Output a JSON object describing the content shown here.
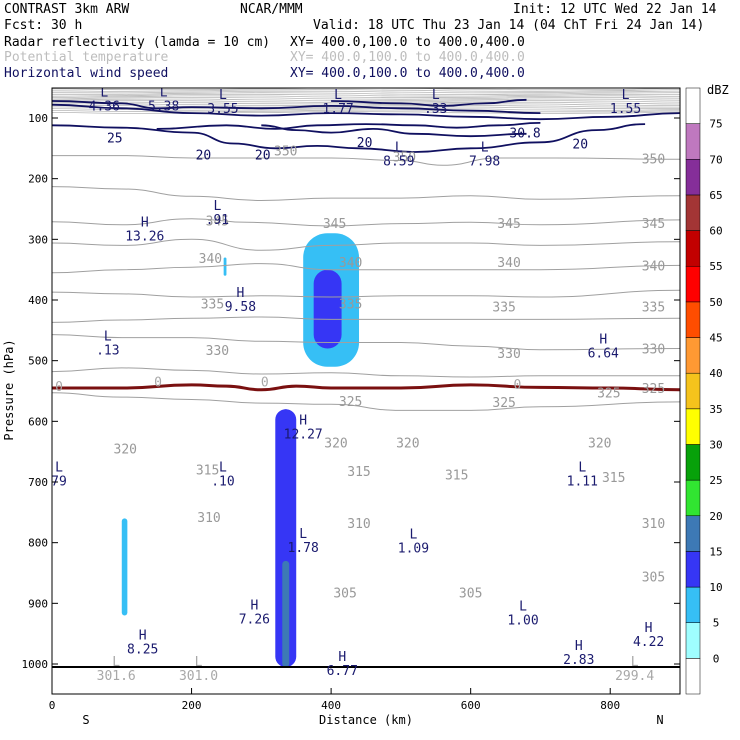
{
  "header": {
    "line1_left": "CONTRAST  3km ARW",
    "line1_mid": "NCAR/MMM",
    "line1_right": "Init: 12 UTC Wed 22 Jan 14",
    "line2_left": "Fcst:     30 h",
    "line2_right": "Valid: 18 UTC Thu 23 Jan 14 (04 ChT Fri 24 Jan 14)",
    "fields": [
      {
        "name": "Radar reflectivity (lamda = 10 cm)",
        "xy": "XY= 400.0,100.0 to 400.0,400.0",
        "color": "#000000"
      },
      {
        "name": "Potential temperature",
        "xy": "XY= 400.0,100.0 to 400.0,400.0",
        "color": "#bdbdbd"
      },
      {
        "name": "Horizontal wind speed",
        "xy": "XY= 400.0,100.0 to 400.0,400.0",
        "color": "#101060"
      }
    ]
  },
  "colors": {
    "isentrope": "#a0a0a0",
    "wind": "#101060",
    "freezing": "#7a1010",
    "ground": "#000000"
  },
  "chart_data": {
    "type": "cross-section",
    "xlabel": "Distance (km)",
    "ylabel": "Pressure (hPa)",
    "xlim": [
      0,
      900
    ],
    "ylim": [
      1050,
      50
    ],
    "x_ticks": [
      0,
      200,
      400,
      600,
      800
    ],
    "y_ticks": [
      100,
      200,
      300,
      400,
      500,
      600,
      700,
      800,
      900,
      1000
    ],
    "x_end_labels": {
      "left": "S",
      "right": "N"
    },
    "colorbar": {
      "unit": "dBZ",
      "levels": [
        0,
        5,
        10,
        15,
        20,
        25,
        30,
        35,
        40,
        45,
        50,
        55,
        60,
        65,
        70,
        75
      ],
      "colors": [
        "#ffffff",
        "#9ffeff",
        "#36bff5",
        "#3636f5",
        "#3d79b5",
        "#31e531",
        "#07a10a",
        "#ffff00",
        "#f5c31c",
        "#ff9933",
        "#ff4d00",
        "#ff0000",
        "#c20000",
        "#a33535",
        "#852e99",
        "#bf78bf",
        "#ffffff"
      ]
    },
    "isentropes": [
      {
        "value": 350,
        "label": "350",
        "points": [
          [
            0,
            162
          ],
          [
            100,
            162
          ],
          [
            200,
            166
          ],
          [
            300,
            166
          ],
          [
            400,
            166
          ],
          [
            500,
            170
          ],
          [
            560,
            178
          ],
          [
            640,
            166
          ],
          [
            720,
            166
          ],
          [
            900,
            168
          ]
        ]
      },
      {
        "value": 345,
        "label": "345",
        "points": [
          [
            0,
            213
          ],
          [
            100,
            217
          ],
          [
            200,
            229
          ],
          [
            300,
            236
          ],
          [
            400,
            232
          ],
          [
            500,
            232
          ],
          [
            600,
            228
          ],
          [
            700,
            234
          ],
          [
            900,
            228
          ]
        ]
      },
      {
        "value": 340,
        "label": "340",
        "points": [
          [
            0,
            271
          ],
          [
            100,
            276
          ],
          [
            200,
            266
          ],
          [
            280,
            272
          ],
          [
            400,
            278
          ],
          [
            500,
            274
          ],
          [
            600,
            272
          ],
          [
            700,
            276
          ],
          [
            900,
            268
          ]
        ]
      },
      {
        "value": 335,
        "label": "335",
        "points": [
          [
            0,
            306
          ],
          [
            100,
            310
          ],
          [
            200,
            300
          ],
          [
            300,
            318
          ],
          [
            400,
            310
          ],
          [
            500,
            306
          ],
          [
            600,
            306
          ],
          [
            700,
            310
          ],
          [
            900,
            304
          ]
        ]
      },
      {
        "value": 330,
        "label": "330",
        "points": [
          [
            0,
            355
          ],
          [
            100,
            350
          ],
          [
            200,
            346
          ],
          [
            300,
            340
          ],
          [
            400,
            350
          ],
          [
            500,
            350
          ],
          [
            600,
            350
          ],
          [
            700,
            350
          ],
          [
            900,
            343
          ]
        ]
      },
      {
        "value": 325,
        "label": "325",
        "points": [
          [
            0,
            387
          ],
          [
            100,
            390
          ],
          [
            200,
            395
          ],
          [
            300,
            393
          ],
          [
            400,
            395
          ],
          [
            500,
            393
          ],
          [
            600,
            393
          ],
          [
            700,
            395
          ],
          [
            900,
            384
          ]
        ]
      },
      {
        "value": 320,
        "label": "320",
        "points": [
          [
            0,
            437
          ],
          [
            100,
            433
          ],
          [
            200,
            430
          ],
          [
            300,
            428
          ],
          [
            400,
            432
          ],
          [
            500,
            432
          ],
          [
            600,
            432
          ],
          [
            700,
            432
          ],
          [
            900,
            430
          ]
        ]
      },
      {
        "value": 315,
        "label": "315",
        "points": [
          [
            0,
            457
          ],
          [
            100,
            462
          ],
          [
            200,
            462
          ],
          [
            300,
            468
          ],
          [
            400,
            470
          ],
          [
            500,
            470
          ],
          [
            600,
            476
          ],
          [
            700,
            482
          ],
          [
            900,
            480
          ]
        ]
      },
      {
        "value": 310,
        "label": "310",
        "points": [
          [
            0,
            518
          ],
          [
            100,
            512
          ],
          [
            200,
            516
          ],
          [
            300,
            522
          ],
          [
            400,
            520
          ],
          [
            500,
            525
          ],
          [
            600,
            527
          ],
          [
            700,
            525
          ],
          [
            900,
            525
          ]
        ]
      },
      {
        "value": 305,
        "label": "305",
        "points": [
          [
            0,
            553
          ],
          [
            100,
            560
          ],
          [
            200,
            564
          ],
          [
            300,
            570
          ],
          [
            400,
            572
          ],
          [
            500,
            582
          ],
          [
            600,
            582
          ],
          [
            700,
            576
          ],
          [
            900,
            568
          ]
        ]
      }
    ],
    "isentrope_labels": [
      {
        "text": "350",
        "x": 335,
        "p": 162
      },
      {
        "text": "350",
        "x": 505,
        "p": 172
      },
      {
        "text": "350",
        "x": 862,
        "p": 175
      },
      {
        "text": "345",
        "x": 237,
        "p": 277
      },
      {
        "text": "345",
        "x": 405,
        "p": 281
      },
      {
        "text": "345",
        "x": 655,
        "p": 281
      },
      {
        "text": "345",
        "x": 862,
        "p": 281
      },
      {
        "text": "340",
        "x": 227,
        "p": 339
      },
      {
        "text": "340",
        "x": 428,
        "p": 346
      },
      {
        "text": "340",
        "x": 655,
        "p": 346
      },
      {
        "text": "340",
        "x": 862,
        "p": 351
      },
      {
        "text": "335",
        "x": 230,
        "p": 414
      },
      {
        "text": "335",
        "x": 428,
        "p": 414
      },
      {
        "text": "335",
        "x": 648,
        "p": 419
      },
      {
        "text": "335",
        "x": 862,
        "p": 419
      },
      {
        "text": "330",
        "x": 237,
        "p": 491
      },
      {
        "text": "330",
        "x": 655,
        "p": 496
      },
      {
        "text": "330",
        "x": 862,
        "p": 488
      },
      {
        "text": "325",
        "x": 428,
        "p": 575
      },
      {
        "text": "325",
        "x": 648,
        "p": 576
      },
      {
        "text": "325",
        "x": 798,
        "p": 561
      },
      {
        "text": "325",
        "x": 862,
        "p": 553
      },
      {
        "text": "320",
        "x": 105,
        "p": 653
      },
      {
        "text": "320",
        "x": 407,
        "p": 643
      },
      {
        "text": "320",
        "x": 510,
        "p": 643
      },
      {
        "text": "320",
        "x": 785,
        "p": 643
      },
      {
        "text": "315",
        "x": 223,
        "p": 688
      },
      {
        "text": "315",
        "x": 440,
        "p": 690
      },
      {
        "text": "315",
        "x": 580,
        "p": 696
      },
      {
        "text": "315",
        "x": 805,
        "p": 700
      },
      {
        "text": "310",
        "x": 225,
        "p": 766
      },
      {
        "text": "310",
        "x": 440,
        "p": 776
      },
      {
        "text": "310",
        "x": 862,
        "p": 776
      },
      {
        "text": "305",
        "x": 420,
        "p": 890
      },
      {
        "text": "305",
        "x": 600,
        "p": 890
      },
      {
        "text": "305",
        "x": 862,
        "p": 864
      }
    ],
    "freezing_level": {
      "label": "0",
      "points": [
        [
          0,
          545
        ],
        [
          100,
          545
        ],
        [
          200,
          540
        ],
        [
          250,
          542
        ],
        [
          300,
          548
        ],
        [
          350,
          542
        ],
        [
          400,
          545
        ],
        [
          500,
          545
        ],
        [
          600,
          540
        ],
        [
          700,
          544
        ],
        [
          800,
          545
        ],
        [
          900,
          548
        ]
      ]
    },
    "wind_contours": [
      {
        "value": 20,
        "label": "20",
        "points": [
          [
            0,
            78
          ],
          [
            100,
            84
          ],
          [
            200,
            92
          ],
          [
            300,
            96
          ],
          [
            400,
            92
          ],
          [
            500,
            94
          ],
          [
            600,
            98
          ],
          [
            700,
            102
          ],
          [
            800,
            98
          ],
          [
            900,
            92
          ]
        ]
      },
      {
        "value": 25,
        "label": "25",
        "points": [
          [
            0,
            72
          ],
          [
            100,
            76
          ],
          [
            150,
            84
          ],
          [
            200,
            82
          ],
          [
            300,
            84
          ],
          [
            400,
            80
          ],
          [
            500,
            84
          ],
          [
            600,
            88
          ],
          [
            700,
            92
          ]
        ]
      },
      {
        "value": 30,
        "label": "30",
        "points": [
          [
            400,
            72
          ],
          [
            500,
            76
          ],
          [
            560,
            80
          ],
          [
            620,
            76
          ],
          [
            680,
            70
          ]
        ]
      }
    ],
    "wind_labels": [
      {
        "text": "25",
        "x": 90,
        "p": 140
      },
      {
        "text": "20",
        "x": 217,
        "p": 168
      },
      {
        "text": "20",
        "x": 302,
        "p": 168
      },
      {
        "text": "20",
        "x": 448,
        "p": 148
      },
      {
        "text": "20",
        "x": 757,
        "p": 150
      },
      {
        "text": "30.8",
        "x": 678,
        "p": 132
      }
    ],
    "reflectivity_cells": [
      {
        "x": [
          360,
          440
        ],
        "p": [
          290,
          510
        ],
        "dbz": 5
      },
      {
        "x": [
          375,
          415
        ],
        "p": [
          350,
          480
        ],
        "dbz": 10
      },
      {
        "x": [
          320,
          350
        ],
        "p": [
          580,
          1005
        ],
        "dbz": 10
      },
      {
        "x": [
          325,
          345
        ],
        "p": [
          580,
          1005
        ],
        "dbz": 10
      },
      {
        "x": [
          330,
          340
        ],
        "p": [
          830,
          1005
        ],
        "dbz": 15
      },
      {
        "x": [
          100,
          108
        ],
        "p": [
          760,
          920
        ],
        "dbz": 5
      },
      {
        "x": [
          246,
          250
        ],
        "p": [
          330,
          360
        ],
        "dbz": 5
      }
    ],
    "extrema": [
      {
        "type": "L",
        "value": "4.36",
        "x": 75,
        "p": 88,
        "muted": false
      },
      {
        "type": "L",
        "value": "5.38",
        "x": 160,
        "p": 88,
        "muted": false
      },
      {
        "type": "L",
        "value": "3.55",
        "x": 245,
        "p": 92,
        "muted": false
      },
      {
        "type": "L",
        "value": "1.77",
        "x": 410,
        "p": 92,
        "muted": false
      },
      {
        "type": "L",
        "value": ".33",
        "x": 550,
        "p": 92,
        "muted": false
      },
      {
        "type": "L",
        "value": "1.55",
        "x": 822,
        "p": 92,
        "muted": false
      },
      {
        "type": "L",
        "value": "8.59",
        "x": 497,
        "p": 178,
        "muted": false
      },
      {
        "type": "L",
        "value": "7.98",
        "x": 620,
        "p": 178,
        "muted": false
      },
      {
        "type": "L",
        "value": ".91",
        "x": 237,
        "p": 275,
        "muted": false
      },
      {
        "type": "H",
        "value": "13.26",
        "x": 133,
        "p": 302,
        "muted": false
      },
      {
        "type": "H",
        "value": "9.58",
        "x": 270,
        "p": 418,
        "muted": false
      },
      {
        "type": "L",
        "value": ".13",
        "x": 80,
        "p": 490,
        "muted": false
      },
      {
        "type": "H",
        "value": "6.64",
        "x": 790,
        "p": 495,
        "muted": false
      },
      {
        "type": "H",
        "value": "12.27",
        "x": 360,
        "p": 628,
        "muted": false
      },
      {
        "type": "L",
        "value": "79",
        "x": 10,
        "p": 706,
        "muted": false
      },
      {
        "type": "L",
        "value": ".10",
        "x": 245,
        "p": 706,
        "muted": false
      },
      {
        "type": "L",
        "value": "1.11",
        "x": 760,
        "p": 706,
        "muted": false
      },
      {
        "type": "L",
        "value": "1.78",
        "x": 360,
        "p": 815,
        "muted": false
      },
      {
        "type": "L",
        "value": "1.09",
        "x": 518,
        "p": 816,
        "muted": false
      },
      {
        "type": "H",
        "value": "7.26",
        "x": 290,
        "p": 933,
        "muted": false
      },
      {
        "type": "L",
        "value": "1.00",
        "x": 675,
        "p": 935,
        "muted": false
      },
      {
        "type": "H",
        "value": "8.25",
        "x": 130,
        "p": 983,
        "muted": false
      },
      {
        "type": "H",
        "value": "4.22",
        "x": 855,
        "p": 970,
        "muted": false
      },
      {
        "type": "H",
        "value": "2.83",
        "x": 755,
        "p": 1000,
        "muted": false
      },
      {
        "type": "H",
        "value": "6.77",
        "x": 416,
        "p": 1018,
        "muted": false
      },
      {
        "type": "L",
        "value": "301.6",
        "x": 92,
        "p": 1026,
        "muted": true
      },
      {
        "type": "L",
        "value": "301.0",
        "x": 210,
        "p": 1026,
        "muted": true
      },
      {
        "type": "L",
        "value": "299.4",
        "x": 835,
        "p": 1026,
        "muted": true
      }
    ],
    "ground_line_p": 1005
  }
}
